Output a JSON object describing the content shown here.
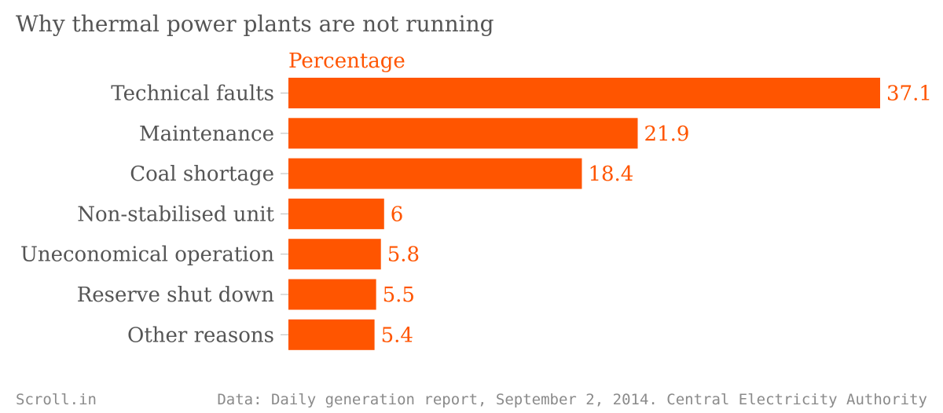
{
  "title": "Why thermal power plants are not running",
  "footer": {
    "source_brand": "Scroll.in",
    "source_note": "Data: Daily generation report, September 2, 2014. Central Electricity Authority"
  },
  "colors": {
    "bar": "#ff5500",
    "category_text": "#555555",
    "title_text": "#555555",
    "footer_text": "#8a8a8a"
  },
  "chart_data": {
    "type": "bar",
    "orientation": "horizontal",
    "categories": [
      "Technical faults",
      "Maintenance",
      "Coal shortage",
      "Non-stabilised unit",
      "Uneconomical operation",
      "Reserve shut down",
      "Other reasons"
    ],
    "series": [
      {
        "name": "Percentage",
        "values": [
          37.1,
          21.9,
          18.4,
          6,
          5.8,
          5.5,
          5.4
        ],
        "labels": [
          "37.1",
          "21.9",
          "18.4",
          "6",
          "5.8",
          "5.5",
          "5.4"
        ]
      }
    ],
    "xlim": [
      0,
      37.1
    ],
    "grid": false,
    "legend": "none"
  }
}
